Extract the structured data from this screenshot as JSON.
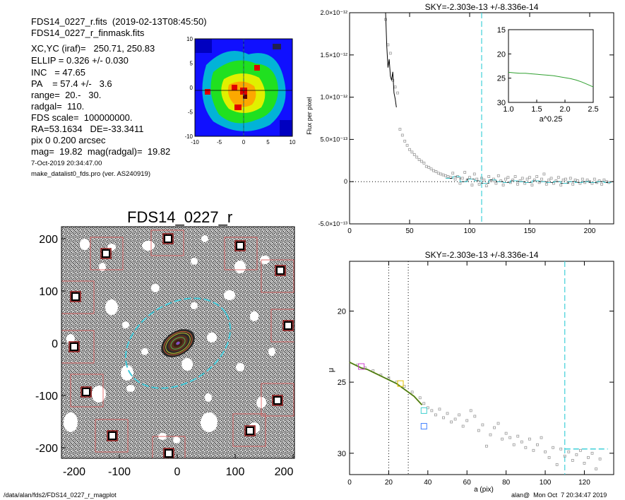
{
  "header": {
    "fits_line": "FDS14_0227_r.fits  (2019-02-13T08:45:50)",
    "mask_line": "FDS14_0227_r_finmask.fits",
    "params": [
      "XC,YC (iraf)=   250.71, 250.83",
      "ELLIP = 0.326 +/- 0.030",
      "INC   = 47.65",
      "PA    = 57.4 +/-   3.6",
      "range=  20.-   30.",
      "radgal=  110.",
      "FDS scale=  100000000.",
      "RA=53.1634   DE=-33.3411",
      "pix 0 0.200 arcsec",
      "mag=  19.82  mag(radgal)=  19.82"
    ],
    "date_line": "7-Oct-2019 20:34:47.00",
    "program_line": "make_datalist0_fds.pro (ver. AS240919)"
  },
  "thumbnail": {
    "x_ticks": [
      "-10",
      "-5",
      "0",
      "5",
      "10"
    ],
    "y_ticks": [
      "10",
      "5",
      "0",
      "-5",
      "-10"
    ]
  },
  "image_panel": {
    "title": "FDS14_0227_r",
    "x_ticks": [
      "-200",
      "-100",
      "0",
      "100",
      "200"
    ],
    "y_ticks": [
      "200",
      "100",
      "0",
      "-100",
      "-200"
    ]
  },
  "chart_data": [
    {
      "type": "scatter",
      "title": "SKY=-2.303e-13 +/-8.336e-14",
      "xlabel": "",
      "ylabel": "Flux per pixel",
      "xlim": [
        0,
        220
      ],
      "ylim": [
        -5e-13,
        2e-12
      ],
      "x_ticks": [
        0,
        50,
        100,
        150,
        200
      ],
      "x_tick_labels": [
        "0",
        "50",
        "100",
        "150",
        "200"
      ],
      "y_ticks": [
        -5e-13,
        0,
        5e-13,
        1e-12,
        1.5e-12,
        2e-12
      ],
      "y_tick_labels": [
        "-5.0×10⁻¹³",
        "0",
        "5.0×10⁻¹³",
        "1.0×10⁻¹²",
        "1.5×10⁻¹²",
        "2.0×10⁻¹²"
      ],
      "radgal_marker": 110,
      "zero_line": 0,
      "profile_line": [
        [
          30,
          2e-12
        ],
        [
          31,
          1.6e-12
        ],
        [
          32,
          1.35e-12
        ],
        [
          33,
          1.45e-12
        ],
        [
          34,
          1.25e-12
        ],
        [
          35,
          1.2e-12
        ],
        [
          36,
          1.3e-12
        ],
        [
          37,
          1.05e-12
        ],
        [
          38,
          9.8e-13
        ],
        [
          39,
          8.8e-13
        ]
      ],
      "sky_points": [
        [
          30,
          1.92e-12
        ],
        [
          32,
          1.62e-12
        ],
        [
          34,
          1.52e-12
        ],
        [
          36,
          1.2e-12
        ],
        [
          38,
          1.12e-12
        ],
        [
          40,
          1.05e-12
        ],
        [
          42,
          6.2e-13
        ],
        [
          44,
          5.5e-13
        ],
        [
          46,
          4.8e-13
        ],
        [
          48,
          4.3e-13
        ],
        [
          50,
          3.8e-13
        ],
        [
          52,
          3.5e-13
        ],
        [
          54,
          3.2e-13
        ],
        [
          56,
          2.9e-13
        ],
        [
          58,
          2.6e-13
        ],
        [
          60,
          2.4e-13
        ],
        [
          62,
          2.2e-13
        ],
        [
          64,
          1.8e-13
        ],
        [
          66,
          1.7e-13
        ],
        [
          68,
          1.5e-13
        ],
        [
          70,
          1.3e-13
        ],
        [
          72,
          1.2e-13
        ],
        [
          74,
          1e-13
        ],
        [
          76,
          9e-14
        ],
        [
          78,
          8e-14
        ],
        [
          80,
          7e-14
        ],
        [
          82,
          6e-14
        ],
        [
          84,
          5e-14
        ],
        [
          86,
          1e-13
        ],
        [
          88,
          3e-14
        ],
        [
          90,
          6e-14
        ],
        [
          92,
          -2e-14
        ],
        [
          94,
          4e-14
        ],
        [
          96,
          1.1e-13
        ],
        [
          98,
          2e-14
        ],
        [
          100,
          5e-14
        ],
        [
          102,
          -4e-14
        ],
        [
          104,
          9e-14
        ],
        [
          106,
          3e-14
        ],
        [
          108,
          -3e-14
        ],
        [
          110,
          4e-14
        ],
        [
          112,
          2e-14
        ],
        [
          114,
          -5e-14
        ],
        [
          116,
          6e-14
        ],
        [
          118,
          1e-14
        ],
        [
          120,
          3e-14
        ],
        [
          122,
          -2e-14
        ],
        [
          124,
          7e-14
        ],
        [
          126,
          1e-14
        ],
        [
          128,
          -4e-14
        ],
        [
          130,
          3e-14
        ],
        [
          132,
          5e-14
        ],
        [
          134,
          -1e-14
        ],
        [
          136,
          2e-14
        ],
        [
          138,
          6e-14
        ],
        [
          140,
          -3e-14
        ],
        [
          142,
          1e-14
        ],
        [
          144,
          4e-14
        ],
        [
          146,
          -2e-14
        ],
        [
          148,
          3e-14
        ],
        [
          150,
          5e-14
        ],
        [
          152,
          -4e-14
        ],
        [
          154,
          2e-14
        ],
        [
          156,
          6e-14
        ],
        [
          158,
          -1e-14
        ],
        [
          160,
          3e-14
        ],
        [
          162,
          9e-14
        ],
        [
          164,
          -3e-14
        ],
        [
          166,
          2e-14
        ],
        [
          168,
          4e-14
        ],
        [
          170,
          -2e-14
        ],
        [
          172,
          1e-14
        ],
        [
          174,
          5e-14
        ],
        [
          176,
          -4e-14
        ],
        [
          178,
          2e-14
        ],
        [
          180,
          3e-14
        ],
        [
          182,
          -1e-14
        ],
        [
          184,
          4e-14
        ],
        [
          186,
          -3e-14
        ],
        [
          188,
          2e-14
        ],
        [
          190,
          1e-14
        ],
        [
          192,
          -2e-14
        ],
        [
          194,
          3e-14
        ],
        [
          196,
          -1e-14
        ],
        [
          198,
          2e-14
        ],
        [
          200,
          0.0
        ],
        [
          202,
          -2e-14
        ],
        [
          204,
          3e-14
        ],
        [
          206,
          -1e-14
        ],
        [
          208,
          1e-14
        ],
        [
          210,
          -3e-14
        ],
        [
          212,
          2e-14
        ],
        [
          214,
          0.0
        ],
        [
          216,
          -1e-14
        ]
      ],
      "binned_sky": [
        [
          80,
          4e-14
        ],
        [
          86,
          6e-14
        ],
        [
          92,
          0.0
        ],
        [
          98,
          3e-14
        ],
        [
          104,
          1e-14
        ],
        [
          110,
          -2e-14
        ],
        [
          116,
          2e-14
        ],
        [
          122,
          0.0
        ],
        [
          128,
          -1e-14
        ],
        [
          134,
          1e-14
        ],
        [
          140,
          0.0
        ],
        [
          146,
          -1e-14
        ],
        [
          152,
          1e-14
        ],
        [
          158,
          0.0
        ],
        [
          164,
          -1e-14
        ],
        [
          170,
          0.0
        ],
        [
          176,
          -2e-14
        ],
        [
          182,
          0.0
        ],
        [
          188,
          -1e-14
        ],
        [
          194,
          0.0
        ],
        [
          200,
          -1e-14
        ],
        [
          206,
          0.0
        ],
        [
          212,
          -1e-14
        ]
      ],
      "inset": {
        "type": "line",
        "xlabel": "a^0.25",
        "xlim": [
          1.0,
          2.5
        ],
        "ylim": [
          30,
          15
        ],
        "x_ticks": [
          1.0,
          1.5,
          2.0,
          2.5
        ],
        "x_tick_labels": [
          "1.0",
          "1.5",
          "2.0",
          "2.5"
        ],
        "y_ticks": [
          15,
          20,
          25,
          30
        ],
        "y_tick_labels": [
          "15",
          "20",
          "25",
          "30"
        ],
        "series": [
          [
            1.0,
            23.8
          ],
          [
            1.1,
            23.9
          ],
          [
            1.2,
            24.0
          ],
          [
            1.3,
            24.0
          ],
          [
            1.4,
            24.1
          ],
          [
            1.5,
            24.2
          ],
          [
            1.6,
            24.3
          ],
          [
            1.7,
            24.4
          ],
          [
            1.8,
            24.5
          ],
          [
            1.9,
            24.7
          ],
          [
            2.0,
            24.9
          ],
          [
            2.1,
            25.1
          ],
          [
            2.2,
            25.4
          ],
          [
            2.3,
            25.8
          ],
          [
            2.4,
            26.3
          ],
          [
            2.5,
            26.8
          ]
        ]
      }
    },
    {
      "type": "scatter",
      "title": "SKY=-2.303e-13 +/-8.336e-14",
      "xlabel": "a (pix)",
      "ylabel": "μ",
      "xlim": [
        0,
        135
      ],
      "ylim": [
        31.5,
        16.5
      ],
      "x_ticks": [
        0,
        20,
        40,
        60,
        80,
        100,
        120
      ],
      "x_tick_labels": [
        "0",
        "20",
        "40",
        "60",
        "80",
        "100",
        "120"
      ],
      "y_ticks": [
        20,
        25,
        30
      ],
      "y_tick_labels": [
        "20",
        "25",
        "30"
      ],
      "range_markers": [
        20,
        30
      ],
      "radgal_marker": 110,
      "sky_level": [
        [
          110,
          29.7
        ],
        [
          132,
          29.7
        ]
      ],
      "profile_line": [
        [
          0,
          23.6
        ],
        [
          3,
          23.8
        ],
        [
          6,
          24.0
        ],
        [
          9,
          24.1
        ],
        [
          12,
          24.3
        ],
        [
          15,
          24.5
        ],
        [
          18,
          24.7
        ],
        [
          21,
          24.9
        ],
        [
          24,
          25.1
        ],
        [
          27,
          25.4
        ],
        [
          30,
          25.7
        ],
        [
          33,
          26.0
        ],
        [
          35,
          26.3
        ],
        [
          37,
          26.6
        ]
      ],
      "sb_points": [
        [
          4,
          23.8
        ],
        [
          8,
          24.0
        ],
        [
          12,
          24.2
        ],
        [
          16,
          24.5
        ],
        [
          20,
          24.7
        ],
        [
          24,
          25.0
        ],
        [
          28,
          25.3
        ],
        [
          32,
          25.7
        ],
        [
          36,
          26.1
        ],
        [
          38,
          26.5
        ],
        [
          40,
          26.8
        ],
        [
          42,
          27.0
        ],
        [
          44,
          27.3
        ],
        [
          46,
          26.9
        ],
        [
          48,
          27.5
        ],
        [
          50,
          27.2
        ],
        [
          52,
          27.8
        ],
        [
          54,
          27.6
        ],
        [
          56,
          27.3
        ],
        [
          58,
          28.1
        ],
        [
          60,
          27.7
        ],
        [
          62,
          27.0
        ],
        [
          64,
          27.4
        ],
        [
          66,
          28.4
        ],
        [
          68,
          28.0
        ],
        [
          70,
          29.5
        ],
        [
          72,
          28.7
        ],
        [
          74,
          28.2
        ],
        [
          76,
          27.9
        ],
        [
          78,
          29.0
        ],
        [
          80,
          28.6
        ],
        [
          82,
          28.9
        ],
        [
          84,
          29.4
        ],
        [
          86,
          28.8
        ],
        [
          88,
          29.2
        ],
        [
          90,
          29.6
        ],
        [
          92,
          29.0
        ],
        [
          94,
          29.8
        ],
        [
          96,
          29.4
        ],
        [
          98,
          28.9
        ],
        [
          100,
          29.9
        ],
        [
          102,
          30.3
        ],
        [
          104,
          29.6
        ],
        [
          106,
          30.8
        ],
        [
          108,
          29.7
        ],
        [
          110,
          30.2
        ],
        [
          112,
          29.9
        ],
        [
          114,
          30.5
        ],
        [
          116,
          30.1
        ],
        [
          118,
          29.8
        ],
        [
          120,
          30.7
        ],
        [
          122,
          30.3
        ],
        [
          124,
          30.0
        ],
        [
          126,
          31.1
        ],
        [
          128,
          30.4
        ]
      ],
      "colored_markers": [
        [
          6,
          23.9,
          "#d040d0"
        ],
        [
          26,
          25.1,
          "#e0c000"
        ],
        [
          38,
          27.0,
          "#40d0d0"
        ],
        [
          38,
          28.1,
          "#4080ff"
        ]
      ]
    }
  ],
  "footer": {
    "path": "/data/alan/fds2/FDS14_0227_r_magplot",
    "stamp": "alan@  Mon Oct  7 20:34:47 2019"
  }
}
